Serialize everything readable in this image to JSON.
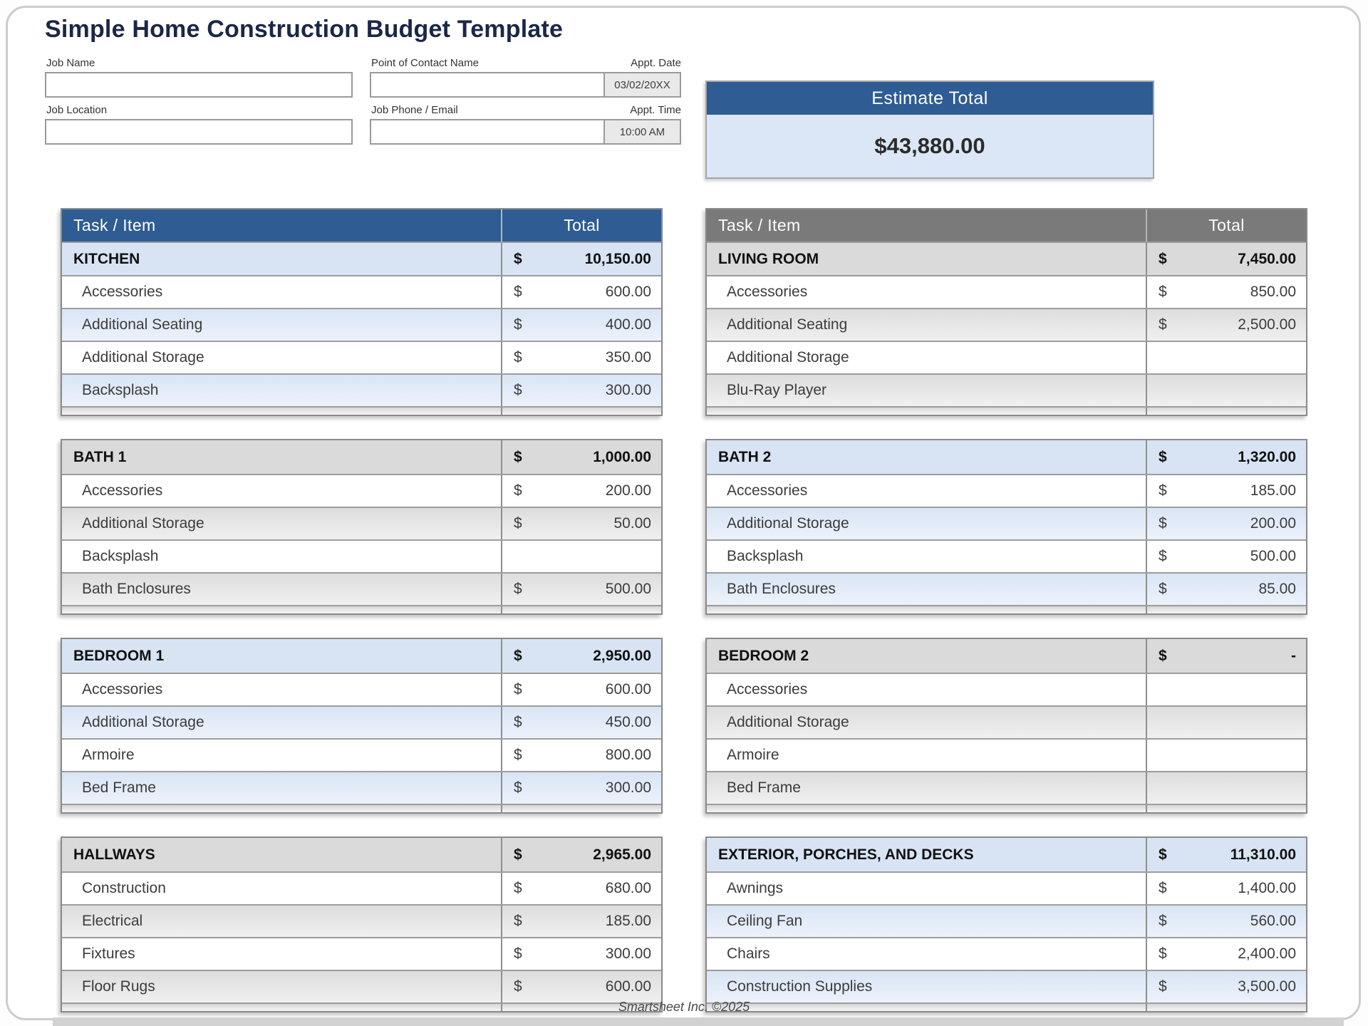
{
  "title": "Simple Home Construction Budget Template",
  "form": {
    "job_name_label": "Job Name",
    "job_location_label": "Job Location",
    "contact_name_label": "Point of Contact Name",
    "phone_email_label": "Job Phone / Email",
    "appt_date_label": "Appt. Date",
    "appt_date_value": "03/02/20XX",
    "appt_time_label": "Appt. Time",
    "appt_time_value": "10:00 AM"
  },
  "estimate": {
    "label": "Estimate Total",
    "value": "$43,880.00"
  },
  "table_header": {
    "task": "Task / Item",
    "total": "Total"
  },
  "currency_symbol": "$",
  "sections": [
    {
      "name": "KITCHEN",
      "total": "10,150.00",
      "theme": "blue",
      "show_column_header": true,
      "items": [
        {
          "label": "Accessories",
          "amount": "600.00"
        },
        {
          "label": "Additional Seating",
          "amount": "400.00"
        },
        {
          "label": "Additional Storage",
          "amount": "350.00"
        },
        {
          "label": "Backsplash",
          "amount": "300.00"
        }
      ]
    },
    {
      "name": "LIVING ROOM",
      "total": "7,450.00",
      "theme": "gray",
      "show_column_header": true,
      "items": [
        {
          "label": "Accessories",
          "amount": "850.00"
        },
        {
          "label": "Additional Seating",
          "amount": "2,500.00"
        },
        {
          "label": "Additional Storage",
          "amount": ""
        },
        {
          "label": "Blu-Ray Player",
          "amount": ""
        }
      ]
    },
    {
      "name": "BATH 1",
      "total": "1,000.00",
      "theme": "gray",
      "show_column_header": false,
      "items": [
        {
          "label": "Accessories",
          "amount": "200.00"
        },
        {
          "label": "Additional Storage",
          "amount": "50.00"
        },
        {
          "label": "Backsplash",
          "amount": ""
        },
        {
          "label": "Bath Enclosures",
          "amount": "500.00"
        }
      ]
    },
    {
      "name": "BATH 2",
      "total": "1,320.00",
      "theme": "blue",
      "show_column_header": false,
      "items": [
        {
          "label": "Accessories",
          "amount": "185.00"
        },
        {
          "label": "Additional Storage",
          "amount": "200.00"
        },
        {
          "label": "Backsplash",
          "amount": "500.00"
        },
        {
          "label": "Bath Enclosures",
          "amount": "85.00"
        }
      ]
    },
    {
      "name": "BEDROOM 1",
      "total": "2,950.00",
      "theme": "blue",
      "show_column_header": false,
      "items": [
        {
          "label": "Accessories",
          "amount": "600.00"
        },
        {
          "label": "Additional Storage",
          "amount": "450.00"
        },
        {
          "label": "Armoire",
          "amount": "800.00"
        },
        {
          "label": "Bed Frame",
          "amount": "300.00"
        }
      ]
    },
    {
      "name": "BEDROOM 2",
      "total": "-",
      "theme": "gray",
      "show_column_header": false,
      "items": [
        {
          "label": "Accessories",
          "amount": ""
        },
        {
          "label": "Additional Storage",
          "amount": ""
        },
        {
          "label": "Armoire",
          "amount": ""
        },
        {
          "label": "Bed Frame",
          "amount": ""
        }
      ]
    },
    {
      "name": "HALLWAYS",
      "total": "2,965.00",
      "theme": "gray",
      "show_column_header": false,
      "items": [
        {
          "label": "Construction",
          "amount": "680.00"
        },
        {
          "label": "Electrical",
          "amount": "185.00"
        },
        {
          "label": "Fixtures",
          "amount": "300.00"
        },
        {
          "label": "Floor Rugs",
          "amount": "600.00"
        }
      ]
    },
    {
      "name": "EXTERIOR, PORCHES, AND DECKS",
      "total": "11,310.00",
      "theme": "blue",
      "show_column_header": false,
      "items": [
        {
          "label": "Awnings",
          "amount": "1,400.00"
        },
        {
          "label": "Ceiling Fan",
          "amount": "560.00"
        },
        {
          "label": "Chairs",
          "amount": "2,400.00"
        },
        {
          "label": "Construction Supplies",
          "amount": "3,500.00"
        }
      ]
    }
  ],
  "footer": "Smartsheet Inc. ©2025",
  "colors": {
    "header_blue": "#2e5c93",
    "header_gray": "#7a7a7a",
    "row_blue": "#d8e4f4",
    "row_gray": "#dadada",
    "panel_blue": "#dbe7f6",
    "title_navy": "#1b2747"
  }
}
